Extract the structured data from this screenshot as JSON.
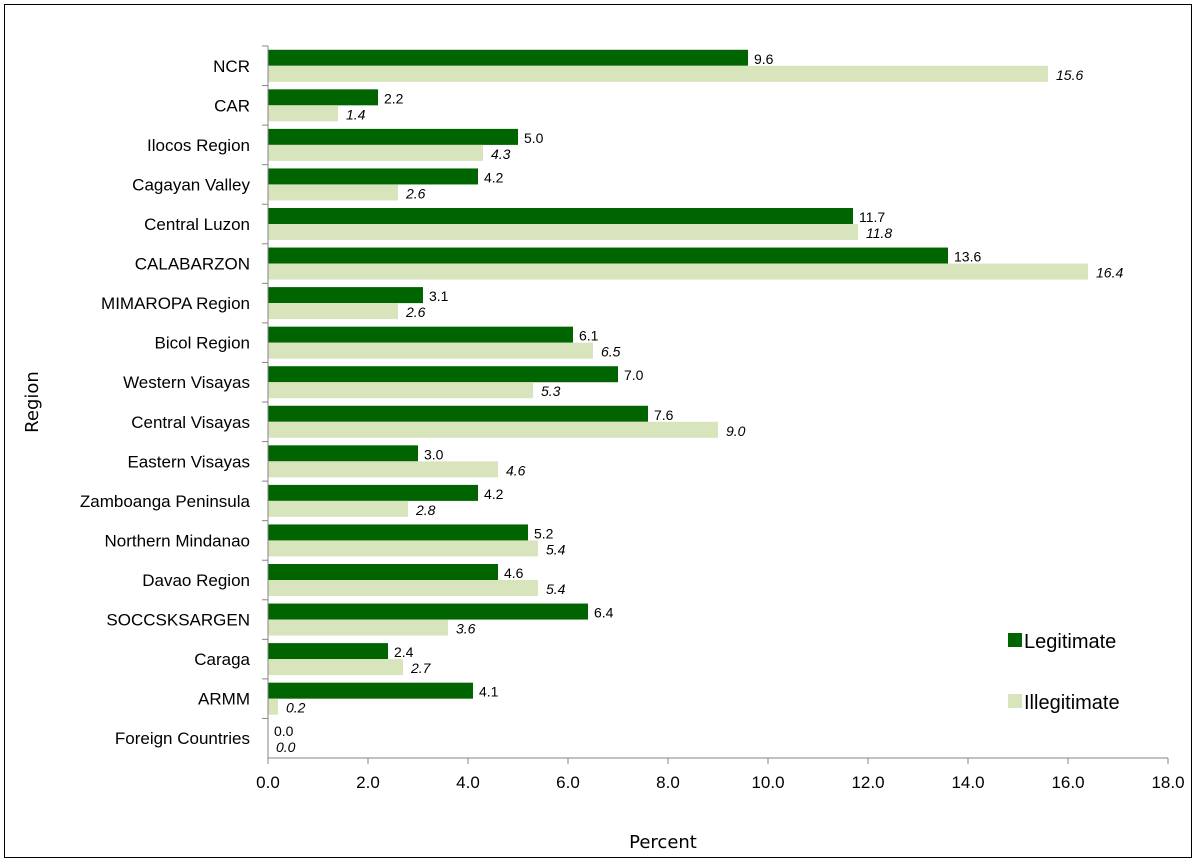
{
  "chart_data": {
    "type": "bar",
    "orientation": "horizontal",
    "title": "",
    "xlabel": "Percent",
    "ylabel": "Region",
    "xlim": [
      0,
      18
    ],
    "x_ticks": [
      "0.0",
      "2.0",
      "4.0",
      "6.0",
      "8.0",
      "10.0",
      "12.0",
      "14.0",
      "16.0",
      "18.0"
    ],
    "grid": false,
    "legend_position": "bottom-right",
    "categories": [
      "NCR",
      "CAR",
      "Ilocos Region",
      "Cagayan Valley",
      "Central Luzon",
      "CALABARZON",
      "MIMAROPA Region",
      "Bicol Region",
      "Western Visayas",
      "Central Visayas",
      "Eastern Visayas",
      "Zamboanga Peninsula",
      "Northern Mindanao",
      "Davao Region",
      "SOCCSKSARGEN",
      "Caraga",
      "ARMM",
      "Foreign Countries"
    ],
    "series": [
      {
        "name": "Legitimate",
        "color": "#006400",
        "values": [
          9.6,
          2.2,
          5.0,
          4.2,
          11.7,
          13.6,
          3.1,
          6.1,
          7.0,
          7.6,
          3.0,
          4.2,
          5.2,
          4.6,
          6.4,
          2.4,
          4.1,
          0.0
        ],
        "labels": [
          "9.6",
          "2.2",
          "5.0",
          "4.2",
          "11.7",
          "13.6",
          "3.1",
          "6.1",
          "7.0",
          "7.6",
          "3.0",
          "4.2",
          "5.2",
          "4.6",
          "6.4",
          "2.4",
          "4.1",
          "0.0"
        ]
      },
      {
        "name": "Illegitimate",
        "color": "#d8e4bc",
        "values": [
          15.6,
          1.4,
          4.3,
          2.6,
          11.8,
          16.4,
          2.6,
          6.5,
          5.3,
          9.0,
          4.6,
          2.8,
          5.4,
          5.4,
          3.6,
          2.7,
          0.2,
          0.0
        ],
        "labels": [
          "15.6",
          "1.4",
          "4.3",
          "2.6",
          "11.8",
          "16.4",
          "2.6",
          "6.5",
          "5.3",
          "9.0",
          "4.6",
          "2.8",
          "5.4",
          "5.4",
          "3.6",
          "2.7",
          "0.2",
          "0.0"
        ]
      }
    ]
  }
}
